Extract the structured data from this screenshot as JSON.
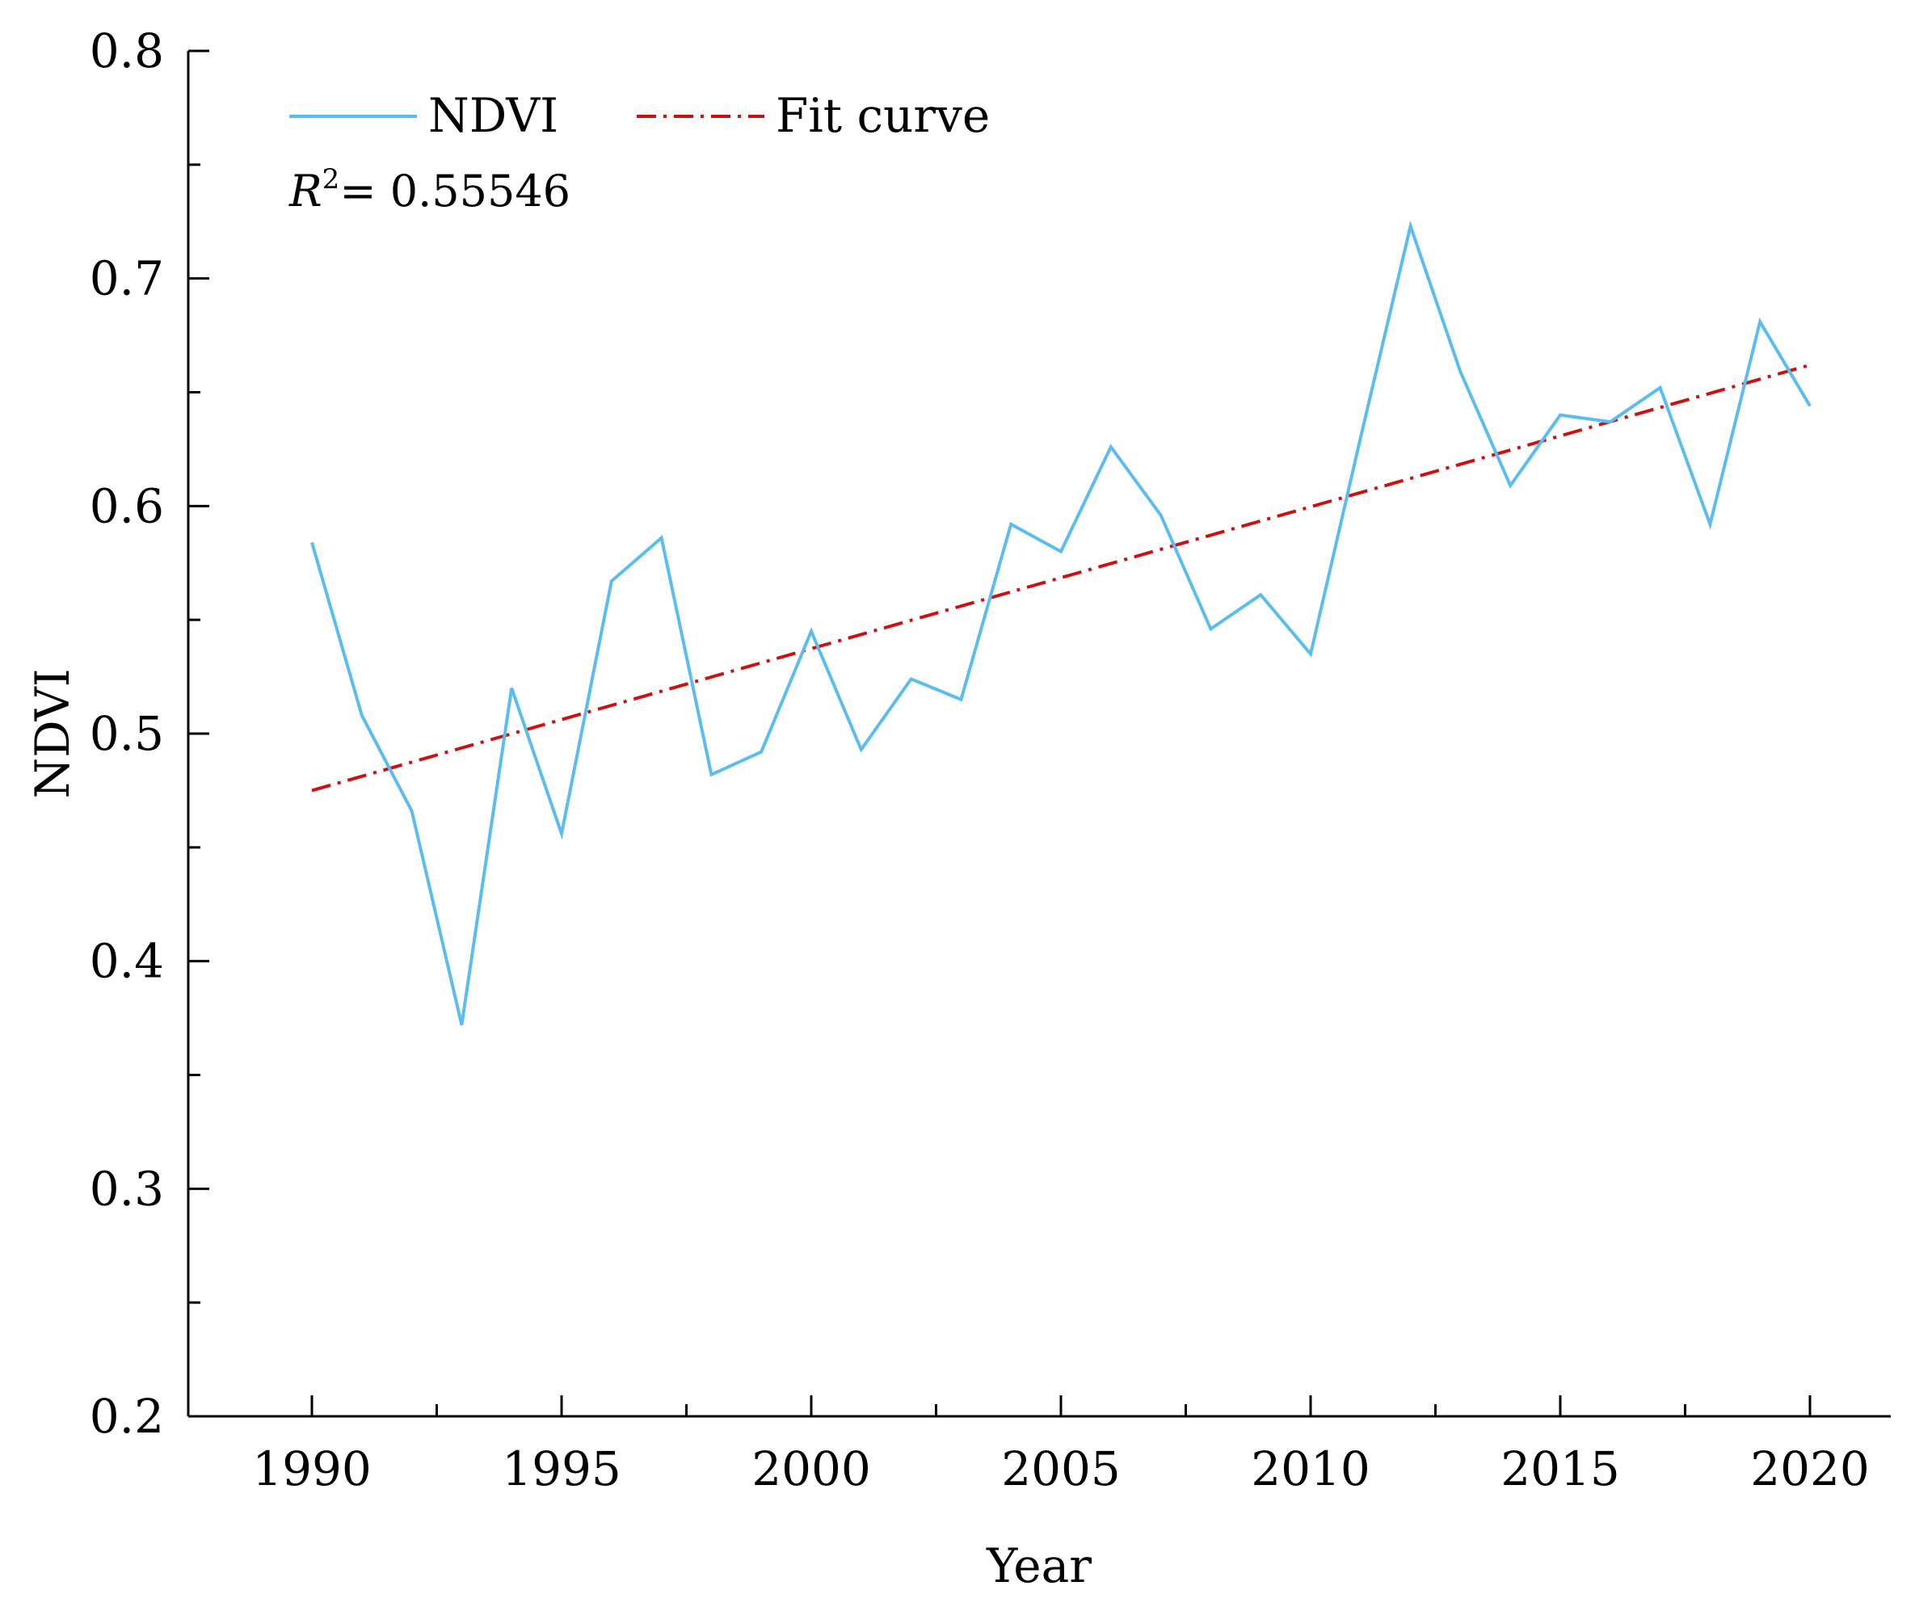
{
  "chart_data": {
    "type": "line",
    "xlabel": "Year",
    "ylabel": "NDVI",
    "xlim": [
      1987.5,
      2021.5
    ],
    "ylim": [
      0.2,
      0.8
    ],
    "x_ticks": [
      1990,
      1995,
      2000,
      2005,
      2010,
      2015,
      2020
    ],
    "x_tick_labels": [
      "1990",
      "1995",
      "2000",
      "2005",
      "2010",
      "2015",
      "2020"
    ],
    "y_ticks": [
      0.2,
      0.3,
      0.4,
      0.5,
      0.6,
      0.7,
      0.8
    ],
    "y_tick_labels": [
      "0.2",
      "0.3",
      "0.4",
      "0.5",
      "0.6",
      "0.7",
      "0.8"
    ],
    "grid": false,
    "legend_position": "top-left",
    "series": [
      {
        "name": "NDVI",
        "style": "solid",
        "color": "#5bbcf0",
        "x": [
          1990,
          1991,
          1992,
          1993,
          1994,
          1995,
          1996,
          1997,
          1998,
          1999,
          2000,
          2001,
          2002,
          2003,
          2004,
          2005,
          2006,
          2007,
          2008,
          2009,
          2010,
          2011,
          2012,
          2013,
          2014,
          2015,
          2016,
          2017,
          2018,
          2019,
          2020
        ],
        "values": [
          0.584,
          0.508,
          0.466,
          0.372,
          0.52,
          0.456,
          0.567,
          0.586,
          0.482,
          0.492,
          0.545,
          0.493,
          0.524,
          0.515,
          0.592,
          0.58,
          0.626,
          0.596,
          0.546,
          0.561,
          0.535,
          0.63,
          0.723,
          0.659,
          0.609,
          0.64,
          0.637,
          0.652,
          0.592,
          0.681,
          0.644
        ]
      },
      {
        "name": "Fit curve",
        "style": "dash-dot",
        "color": "#cc1111",
        "x": [
          1990,
          2020
        ],
        "values": [
          0.475,
          0.662
        ]
      }
    ],
    "annotations": {
      "r2_symbol": "R",
      "r2_exponent": "2",
      "r2_text": "= 0.55546"
    }
  }
}
